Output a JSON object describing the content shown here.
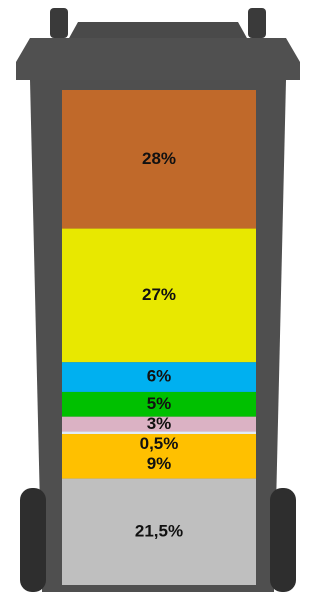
{
  "chart_data": {
    "type": "bar",
    "stacked": true,
    "values": [
      28,
      27,
      6,
      5,
      3,
      0.5,
      9,
      21.5
    ],
    "value_labels": [
      "28%",
      "27%",
      "6%",
      "5%",
      "3%",
      "0,5%",
      "9%",
      "21,5%"
    ],
    "colors": [
      "#c0692a",
      "#e8e800",
      "#00b0f0",
      "#00c000",
      "#dbb2c4",
      "#e2ecf6",
      "#ffc000",
      "#bfbfbf"
    ]
  }
}
